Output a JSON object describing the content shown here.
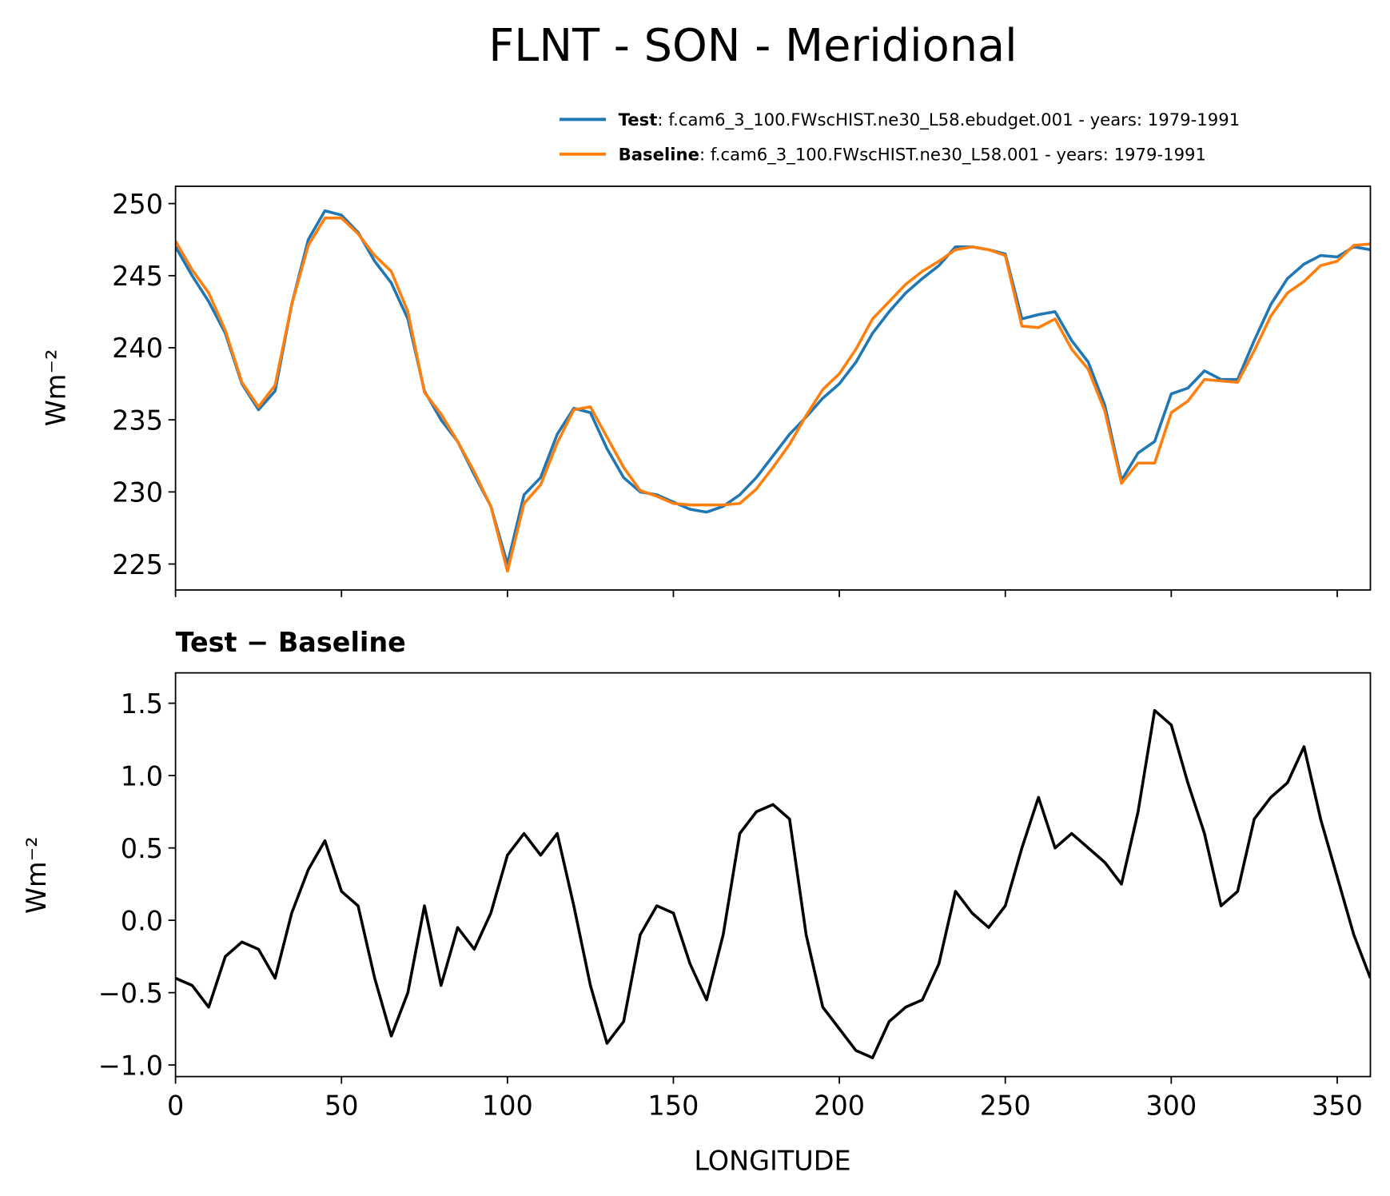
{
  "chart_data": [
    {
      "type": "line",
      "title": "FLNT - SON - Meridional",
      "ylabel": "Wm⁻²",
      "x": [
        0,
        5,
        10,
        15,
        20,
        25,
        30,
        35,
        40,
        45,
        50,
        55,
        60,
        65,
        70,
        75,
        80,
        85,
        90,
        95,
        100,
        105,
        110,
        115,
        120,
        125,
        130,
        135,
        140,
        145,
        150,
        155,
        160,
        165,
        170,
        175,
        180,
        185,
        190,
        195,
        200,
        205,
        210,
        215,
        220,
        225,
        230,
        235,
        240,
        245,
        250,
        255,
        260,
        265,
        270,
        275,
        280,
        285,
        290,
        295,
        300,
        305,
        310,
        315,
        320,
        325,
        330,
        335,
        340,
        345,
        350,
        355,
        360
      ],
      "series": [
        {
          "name": "Test",
          "description": ": f.cam6_3_100.FWscHIST.ne30_L58.ebudget.001 - years: 1979-1991",
          "color": "#1f77b4",
          "values": [
            247,
            245,
            243.2,
            241,
            237.5,
            235.7,
            237,
            243,
            247.5,
            249.5,
            249.2,
            248,
            246,
            244.5,
            242,
            237,
            235,
            233.5,
            231.2,
            229,
            225,
            229.8,
            231,
            234,
            235.8,
            235.5,
            233,
            231,
            230,
            229.8,
            229.3,
            228.8,
            228.6,
            229,
            229.8,
            231,
            232.5,
            234,
            235.2,
            236.5,
            237.5,
            239,
            241,
            242.5,
            243.8,
            244.8,
            245.7,
            247,
            247,
            246.8,
            246.5,
            242,
            242.3,
            242.5,
            240.5,
            239,
            236,
            230.8,
            232.7,
            233.5,
            236.8,
            237.2,
            238.4,
            237.8,
            237.8,
            240.5,
            243,
            244.8,
            245.8,
            246.4,
            246.3,
            247,
            246.8
          ]
        },
        {
          "name": "Baseline",
          "description": ": f.cam6_3_100.FWscHIST.ne30_L58.001 - years: 1979-1991",
          "color": "#ff7f0e",
          "values": [
            247.4,
            245.4,
            243.8,
            241.2,
            237.6,
            235.9,
            237.4,
            243,
            247.1,
            249,
            249,
            247.9,
            246.4,
            245.3,
            242.5,
            236.9,
            235.4,
            233.5,
            231.4,
            229,
            224.5,
            229.2,
            230.5,
            233.4,
            235.7,
            235.9,
            233.8,
            231.7,
            230.1,
            229.7,
            229.2,
            229.1,
            229.1,
            229.1,
            229.2,
            230.2,
            231.7,
            233.3,
            235.3,
            237.1,
            238.2,
            239.9,
            242,
            243.2,
            244.4,
            245.3,
            246,
            246.8,
            247,
            246.8,
            246.4,
            241.5,
            241.4,
            242,
            239.9,
            238.5,
            235.6,
            230.6,
            232,
            232,
            235.5,
            236.3,
            237.8,
            237.7,
            237.6,
            239.8,
            242.2,
            243.8,
            244.6,
            245.7,
            246,
            247.1,
            247.2
          ]
        }
      ],
      "xlim": [
        0,
        360
      ],
      "xticks": [
        0,
        50,
        100,
        150,
        200,
        250,
        300,
        350
      ],
      "ylim": [
        223.2,
        251.2
      ],
      "yticks": [
        225,
        230,
        235,
        240,
        245,
        250
      ]
    },
    {
      "type": "line",
      "title": "Test − Baseline",
      "xlabel": "LONGITUDE",
      "ylabel": "Wm⁻²",
      "color": "#000000",
      "x": [
        0,
        5,
        10,
        15,
        20,
        25,
        30,
        35,
        40,
        45,
        50,
        55,
        60,
        65,
        70,
        75,
        80,
        85,
        90,
        95,
        100,
        105,
        110,
        115,
        120,
        125,
        130,
        135,
        140,
        145,
        150,
        155,
        160,
        165,
        170,
        175,
        180,
        185,
        190,
        195,
        200,
        205,
        210,
        215,
        220,
        225,
        230,
        235,
        240,
        245,
        250,
        255,
        260,
        265,
        270,
        275,
        280,
        285,
        290,
        295,
        300,
        305,
        310,
        315,
        320,
        325,
        330,
        335,
        340,
        345,
        350,
        355,
        360
      ],
      "values": [
        -0.4,
        -0.45,
        -0.6,
        -0.25,
        -0.15,
        -0.2,
        -0.4,
        0.05,
        0.35,
        0.55,
        0.2,
        0.1,
        -0.4,
        -0.8,
        -0.5,
        0.1,
        -0.45,
        -0.05,
        -0.2,
        0.05,
        0.45,
        0.6,
        0.45,
        0.6,
        0.1,
        -0.45,
        -0.85,
        -0.7,
        -0.1,
        0.1,
        0.05,
        -0.3,
        -0.55,
        -0.1,
        0.6,
        0.75,
        0.8,
        0.7,
        -0.1,
        -0.6,
        -0.75,
        -0.9,
        -0.95,
        -0.7,
        -0.6,
        -0.55,
        -0.3,
        0.2,
        0.05,
        -0.05,
        0.1,
        0.5,
        0.85,
        0.5,
        0.6,
        0.5,
        0.4,
        0.25,
        0.75,
        1.45,
        1.35,
        0.95,
        0.6,
        0.1,
        0.2,
        0.7,
        0.85,
        0.95,
        1.2,
        0.7,
        0.3,
        -0.1,
        -0.4
      ],
      "xlim": [
        0,
        360
      ],
      "xticks": [
        0,
        50,
        100,
        150,
        200,
        250,
        300,
        350
      ],
      "ylim": [
        -1.08,
        1.71
      ],
      "yticks": [
        {
          "value": -1.0,
          "label": "−1.0"
        },
        {
          "value": -0.5,
          "label": "−0.5"
        },
        {
          "value": 0,
          "label": "0.0"
        },
        0.5,
        {
          "value": 1.0,
          "label": "1.0"
        },
        1.5
      ]
    }
  ]
}
